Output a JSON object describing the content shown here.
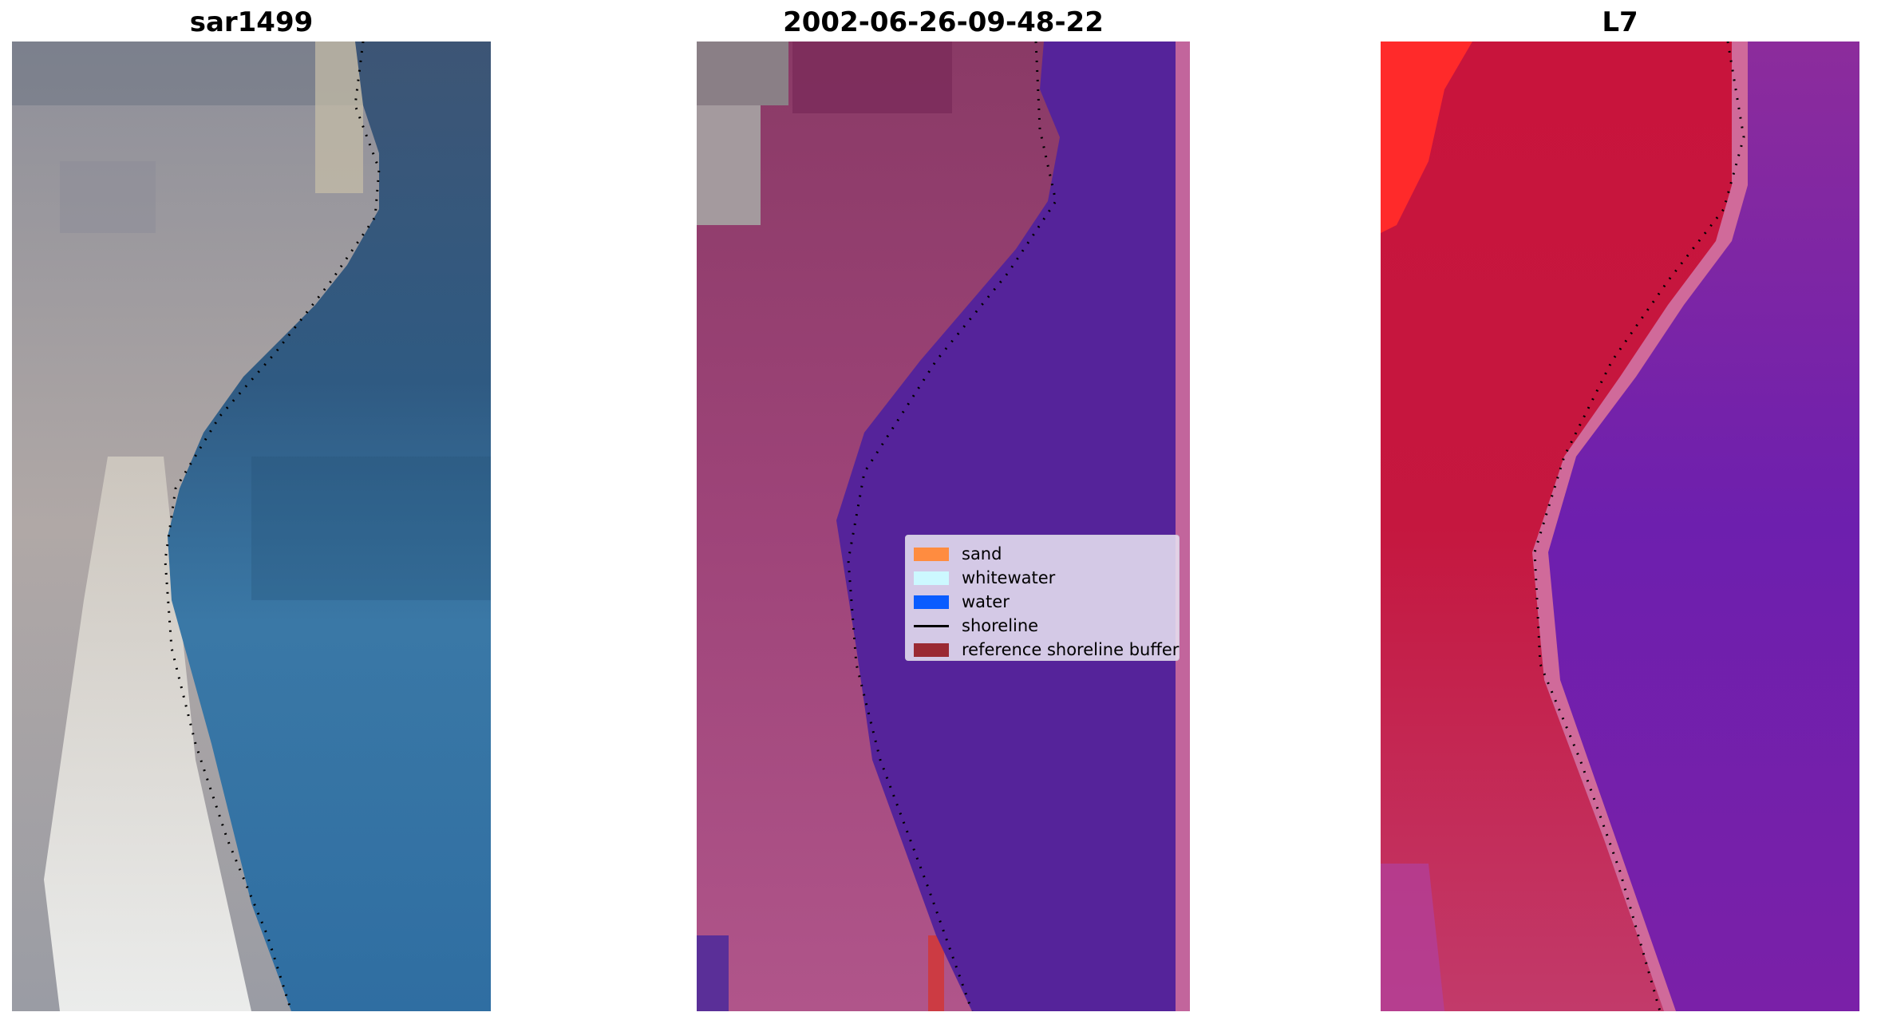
{
  "panels": [
    {
      "title": "sar1499"
    },
    {
      "title": "2002-06-26-09-48-22"
    },
    {
      "title": "L7"
    }
  ],
  "legend": {
    "items": [
      {
        "label": "sand",
        "color": "#ff8c40"
      },
      {
        "label": "whitewater",
        "color": "#ccf8ff"
      },
      {
        "label": "water",
        "color": "#0a5cff"
      },
      {
        "label": "shoreline",
        "color": "#000000"
      },
      {
        "label": "reference shoreline buffer",
        "color": "#9a2a33"
      }
    ]
  }
}
